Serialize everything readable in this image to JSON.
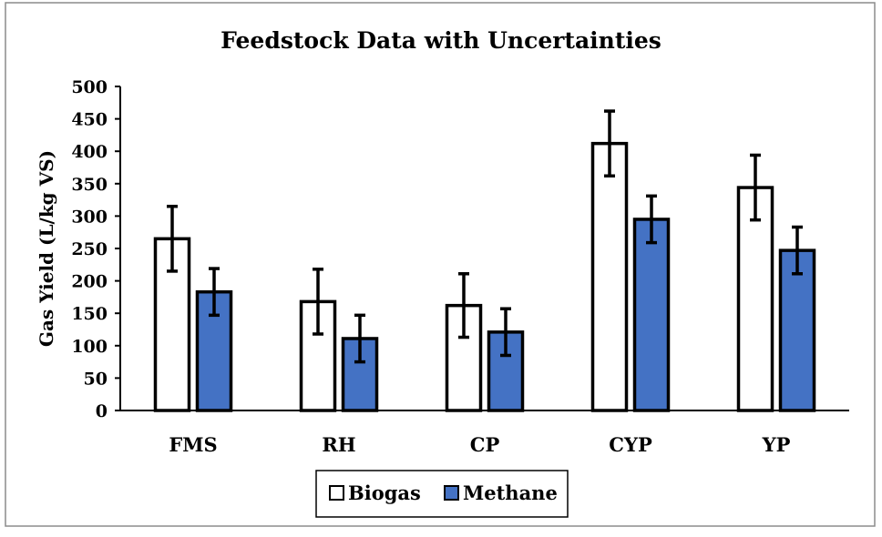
{
  "chart_data": {
    "type": "bar",
    "title": "Feedstock Data with Uncertainties",
    "xlabel": "",
    "ylabel": "Gas Yield (L/kg VS)",
    "ylim": [
      0,
      500
    ],
    "yticks": [
      0,
      50,
      100,
      150,
      200,
      250,
      300,
      350,
      400,
      450,
      500
    ],
    "categories": [
      "FMS",
      "RH",
      "CP",
      "CYP",
      "YP"
    ],
    "series": [
      {
        "name": "Biogas",
        "color": "#ffffff",
        "values": [
          265,
          168,
          162,
          412,
          344
        ],
        "error": [
          50,
          50,
          49,
          50,
          50
        ]
      },
      {
        "name": "Methane",
        "color": "#4472c4",
        "values": [
          183,
          111,
          121,
          295,
          247
        ],
        "error": [
          36,
          36,
          36,
          36,
          36
        ]
      }
    ],
    "grid": false,
    "legend_position": "bottom"
  }
}
